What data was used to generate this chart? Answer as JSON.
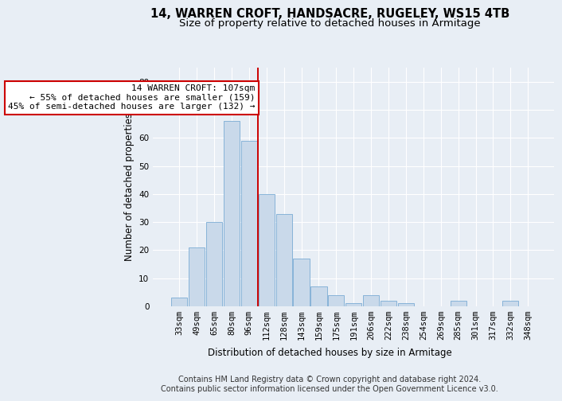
{
  "title1": "14, WARREN CROFT, HANDSACRE, RUGELEY, WS15 4TB",
  "title2": "Size of property relative to detached houses in Armitage",
  "xlabel": "Distribution of detached houses by size in Armitage",
  "ylabel": "Number of detached properties",
  "categories": [
    "33sqm",
    "49sqm",
    "65sqm",
    "80sqm",
    "96sqm",
    "112sqm",
    "128sqm",
    "143sqm",
    "159sqm",
    "175sqm",
    "191sqm",
    "206sqm",
    "222sqm",
    "238sqm",
    "254sqm",
    "269sqm",
    "285sqm",
    "301sqm",
    "317sqm",
    "332sqm",
    "348sqm"
  ],
  "values": [
    3,
    21,
    30,
    66,
    59,
    40,
    33,
    17,
    7,
    4,
    1,
    4,
    2,
    1,
    0,
    0,
    2,
    0,
    0,
    2,
    0
  ],
  "bar_color": "#c9d9ea",
  "bar_edge_color": "#7aacd4",
  "vline_x_index": 5,
  "vline_color": "#cc0000",
  "annotation_text": "14 WARREN CROFT: 107sqm\n← 55% of detached houses are smaller (159)\n45% of semi-detached houses are larger (132) →",
  "annotation_box_facecolor": "#ffffff",
  "annotation_box_edgecolor": "#cc0000",
  "ylim": [
    0,
    85
  ],
  "yticks": [
    0,
    10,
    20,
    30,
    40,
    50,
    60,
    70,
    80
  ],
  "footer1": "Contains HM Land Registry data © Crown copyright and database right 2024.",
  "footer2": "Contains public sector information licensed under the Open Government Licence v3.0.",
  "bg_color": "#e8eef5",
  "plot_bg_color": "#e8eef5",
  "grid_color": "#ffffff",
  "title1_fontsize": 10.5,
  "title2_fontsize": 9.5,
  "axis_label_fontsize": 8.5,
  "tick_fontsize": 7.5,
  "annotation_fontsize": 8,
  "footer_fontsize": 7
}
